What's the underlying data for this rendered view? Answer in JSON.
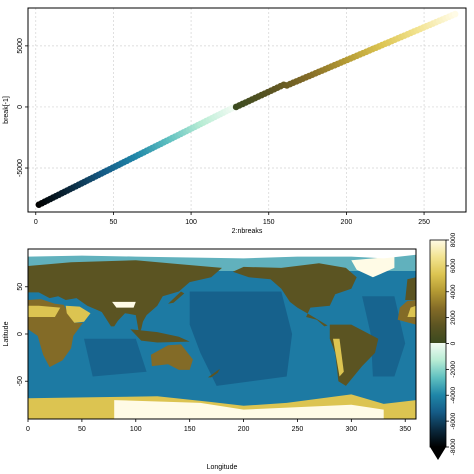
{
  "chart_data": [
    {
      "type": "scatter",
      "title": "",
      "xlabel": "2:nbreaks",
      "ylabel": "break[-1]",
      "xlim": [
        -5,
        277
      ],
      "ylim": [
        -8600,
        8100
      ],
      "xticks": [
        0,
        50,
        100,
        150,
        200,
        250
      ],
      "yticks": [
        -5000,
        0,
        5000
      ],
      "grid": true,
      "series": [
        {
          "segment": "ocean",
          "x_range": [
            2,
            128
          ],
          "y_range": [
            -8000,
            0
          ],
          "colors": [
            "#000000",
            "#0b2a3f",
            "#155b86",
            "#1f86a8",
            "#5fc0c0",
            "#b7ecd4",
            "#f2fbf3"
          ]
        },
        {
          "segment": "land",
          "x_range": [
            129,
            270
          ],
          "y_range": [
            0,
            7600
          ],
          "colors": [
            "#3b4a1f",
            "#5b5422",
            "#836b27",
            "#b39933",
            "#dcc451",
            "#f2e390",
            "#fffbe6"
          ]
        }
      ]
    },
    {
      "type": "heatmap",
      "title": "",
      "xlabel": "Longitude",
      "ylabel": "Latitude",
      "xlim": [
        0,
        360
      ],
      "ylim": [
        -90,
        90
      ],
      "xticks": [
        0,
        50,
        100,
        150,
        200,
        250,
        300,
        350
      ],
      "yticks": [
        -50,
        0,
        50
      ],
      "legend": {
        "placement": "right",
        "ticks": [
          -8000,
          -6000,
          -4000,
          -2000,
          0,
          2000,
          4000,
          6000,
          8000
        ],
        "ocean_colors": [
          "#000000",
          "#0b2a3f",
          "#155b86",
          "#1f86a8",
          "#5fc0c0",
          "#b7ecd4",
          "#f2fbf3"
        ],
        "land_colors": [
          "#3b4a1f",
          "#5b5422",
          "#836b27",
          "#b39933",
          "#dcc451",
          "#f2e390",
          "#fffbe6"
        ]
      }
    }
  ]
}
